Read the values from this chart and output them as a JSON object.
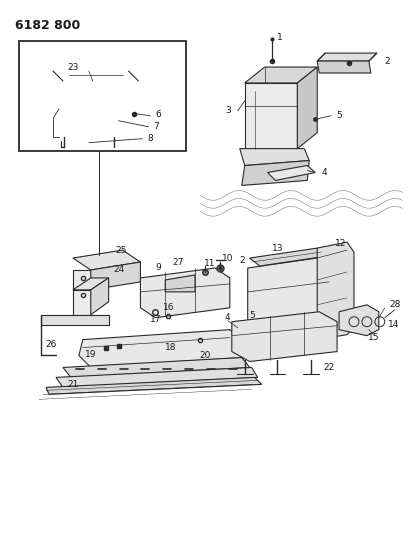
{
  "title": "6182 800",
  "bg": "#ffffff",
  "lc": "#2a2a2a",
  "tc": "#1a1a1a",
  "fig_w": 4.08,
  "fig_h": 5.33,
  "dpi": 100
}
